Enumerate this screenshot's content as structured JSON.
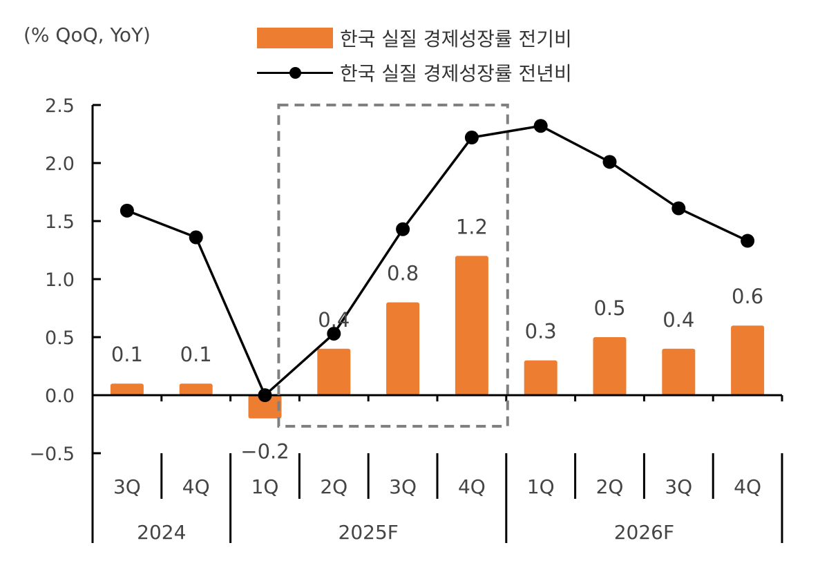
{
  "unit_label": "(% QoQ, YoY)",
  "legend": {
    "bar_label": "한국 실질 경제성장률 전기비",
    "line_label": "한국 실질 경제성장률 전년비"
  },
  "colors": {
    "bar": "#ED7D31",
    "line": "#000000",
    "box": "#808080"
  },
  "chart_data": {
    "type": "bar",
    "title": "",
    "categories": [
      "3Q",
      "4Q",
      "1Q",
      "2Q",
      "3Q",
      "4Q",
      "1Q",
      "2Q",
      "3Q",
      "4Q"
    ],
    "groups": [
      {
        "label": "2024",
        "count": 2
      },
      {
        "label": "2025F",
        "count": 4
      },
      {
        "label": "2026F",
        "count": 4
      }
    ],
    "series": [
      {
        "name": "한국 실질 경제성장률 전기비",
        "type": "bar",
        "values": [
          0.1,
          0.1,
          -0.2,
          0.4,
          0.8,
          1.2,
          0.3,
          0.5,
          0.4,
          0.6
        ]
      },
      {
        "name": "한국 실질 경제성장률 전년비",
        "type": "line",
        "values": [
          1.59,
          1.36,
          0.0,
          0.53,
          1.43,
          2.22,
          2.32,
          2.01,
          1.61,
          1.33
        ]
      }
    ],
    "data_labels": [
      "0.1",
      "0.1",
      "−0.2",
      "0.4",
      "0.8",
      "1.2",
      "0.3",
      "0.5",
      "0.4",
      "0.6"
    ],
    "ylim": [
      -0.5,
      2.5
    ],
    "yticks": [
      "−0.5",
      "0.0",
      "0.5",
      "1.0",
      "1.5",
      "2.0",
      "2.5"
    ],
    "highlight": "2025F 2Q–4Q dashed box",
    "grid": false,
    "legend_position": "top-center"
  }
}
